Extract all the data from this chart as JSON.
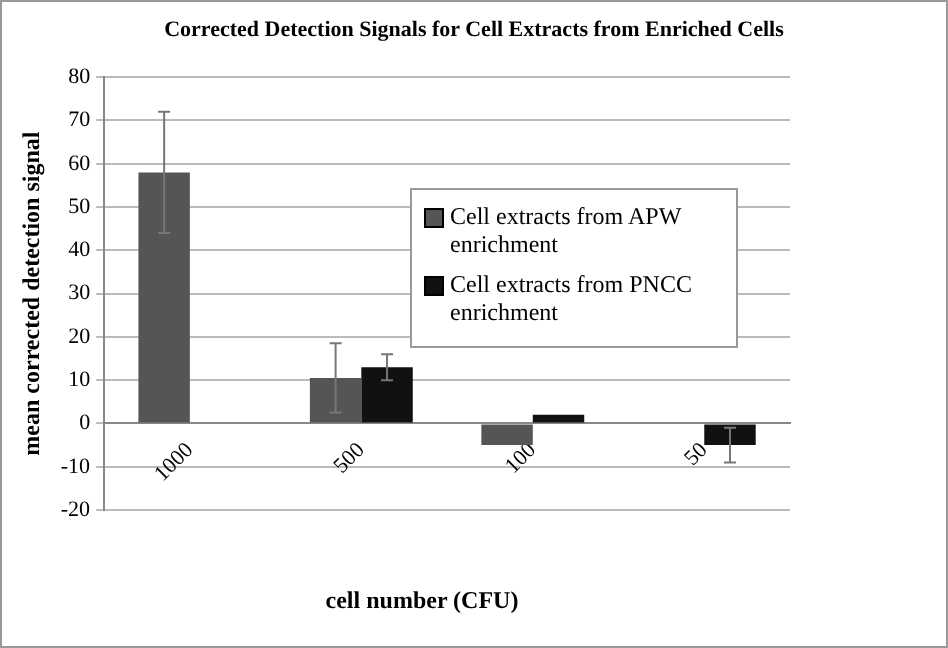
{
  "chart_data": {
    "type": "bar",
    "title": "Corrected Detection Signals for Cell Extracts from Enriched Cells",
    "xlabel": "cell number (CFU)",
    "ylabel": "mean corrected detection signal",
    "categories": [
      "1000",
      "500",
      "100",
      "50"
    ],
    "series": [
      {
        "name": "Cell extracts from APW enrichment",
        "color": "#555555",
        "values": [
          58,
          10.5,
          -5,
          null
        ],
        "errors": [
          14,
          8,
          null,
          null
        ]
      },
      {
        "name": "Cell extracts from PNCC enrichment",
        "color": "#111111",
        "values": [
          0,
          13,
          2,
          -5
        ],
        "errors": [
          null,
          3,
          null,
          4
        ]
      }
    ],
    "ylim": [
      -20,
      80
    ],
    "yticks": [
      -20,
      -10,
      0,
      10,
      20,
      30,
      40,
      50,
      60,
      70,
      80
    ],
    "grid": "y",
    "legend": "top right"
  }
}
